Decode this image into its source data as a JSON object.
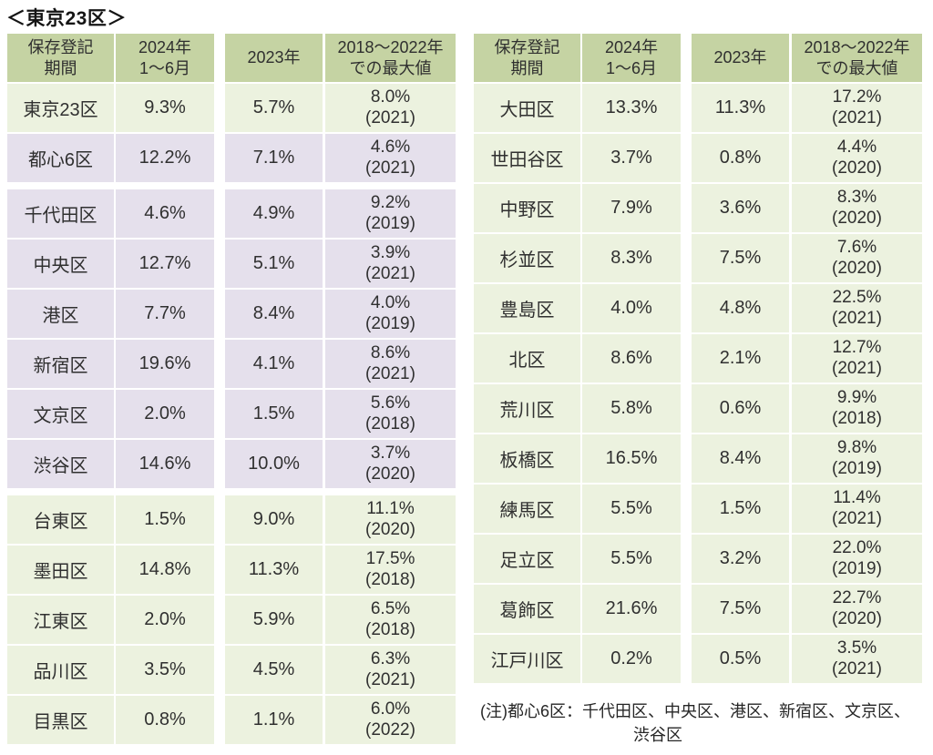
{
  "title": "＜東京23区＞",
  "colors": {
    "header_bg": "#c5d3a3",
    "green_row_bg": "#ecf2df",
    "purple_row_bg": "#e5e0ec",
    "text": "#303030"
  },
  "tables": [
    {
      "headers": [
        "保存登記\n期間",
        "2024年\n1〜6月",
        "2023年",
        "2018〜2022年\nでの最大値"
      ],
      "rows": [
        {
          "name": "東京23区",
          "v2024": "9.3%",
          "v2023": "5.7%",
          "max": "8.0%",
          "max_year": "(2021)",
          "color": "green",
          "gap_before": false
        },
        {
          "name": "都心6区",
          "v2024": "12.2%",
          "v2023": "7.1%",
          "max": "4.6%",
          "max_year": "(2021)",
          "color": "purple",
          "gap_before": false
        },
        {
          "name": "千代田区",
          "v2024": "4.6%",
          "v2023": "4.9%",
          "max": "9.2%",
          "max_year": "(2019)",
          "color": "purple",
          "gap_before": true
        },
        {
          "name": "中央区",
          "v2024": "12.7%",
          "v2023": "5.1%",
          "max": "3.9%",
          "max_year": "(2021)",
          "color": "purple",
          "gap_before": false
        },
        {
          "name": "港区",
          "v2024": "7.7%",
          "v2023": "8.4%",
          "max": "4.0%",
          "max_year": "(2019)",
          "color": "purple",
          "gap_before": false
        },
        {
          "name": "新宿区",
          "v2024": "19.6%",
          "v2023": "4.1%",
          "max": "8.6%",
          "max_year": "(2021)",
          "color": "purple",
          "gap_before": false
        },
        {
          "name": "文京区",
          "v2024": "2.0%",
          "v2023": "1.5%",
          "max": "5.6%",
          "max_year": "(2018)",
          "color": "purple",
          "gap_before": false
        },
        {
          "name": "渋谷区",
          "v2024": "14.6%",
          "v2023": "10.0%",
          "max": "3.7%",
          "max_year": "(2020)",
          "color": "purple",
          "gap_before": false
        },
        {
          "name": "台東区",
          "v2024": "1.5%",
          "v2023": "9.0%",
          "max": "11.1%",
          "max_year": "(2020)",
          "color": "green",
          "gap_before": true
        },
        {
          "name": "墨田区",
          "v2024": "14.8%",
          "v2023": "11.3%",
          "max": "17.5%",
          "max_year": "(2018)",
          "color": "green",
          "gap_before": false
        },
        {
          "name": "江東区",
          "v2024": "2.0%",
          "v2023": "5.9%",
          "max": "6.5%",
          "max_year": "(2018)",
          "color": "green",
          "gap_before": false
        },
        {
          "name": "品川区",
          "v2024": "3.5%",
          "v2023": "4.5%",
          "max": "6.3%",
          "max_year": "(2021)",
          "color": "green",
          "gap_before": false
        },
        {
          "name": "目黒区",
          "v2024": "0.8%",
          "v2023": "1.1%",
          "max": "6.0%",
          "max_year": "(2022)",
          "color": "green",
          "gap_before": false
        }
      ]
    },
    {
      "headers": [
        "保存登記\n期間",
        "2024年\n1〜6月",
        "2023年",
        "2018〜2022年\nでの最大値"
      ],
      "rows": [
        {
          "name": "大田区",
          "v2024": "13.3%",
          "v2023": "11.3%",
          "max": "17.2%",
          "max_year": "(2021)",
          "color": "green",
          "gap_before": false
        },
        {
          "name": "世田谷区",
          "v2024": "3.7%",
          "v2023": "0.8%",
          "max": "4.4%",
          "max_year": "(2020)",
          "color": "green",
          "gap_before": false
        },
        {
          "name": "中野区",
          "v2024": "7.9%",
          "v2023": "3.6%",
          "max": "8.3%",
          "max_year": "(2020)",
          "color": "green",
          "gap_before": false
        },
        {
          "name": "杉並区",
          "v2024": "8.3%",
          "v2023": "7.5%",
          "max": "7.6%",
          "max_year": "(2020)",
          "color": "green",
          "gap_before": false
        },
        {
          "name": "豊島区",
          "v2024": "4.0%",
          "v2023": "4.8%",
          "max": "22.5%",
          "max_year": "(2021)",
          "color": "green",
          "gap_before": false
        },
        {
          "name": "北区",
          "v2024": "8.6%",
          "v2023": "2.1%",
          "max": "12.7%",
          "max_year": "(2021)",
          "color": "green",
          "gap_before": false
        },
        {
          "name": "荒川区",
          "v2024": "5.8%",
          "v2023": "0.6%",
          "max": "9.9%",
          "max_year": "(2018)",
          "color": "green",
          "gap_before": false
        },
        {
          "name": "板橋区",
          "v2024": "16.5%",
          "v2023": "8.4%",
          "max": "9.8%",
          "max_year": "(2019)",
          "color": "green",
          "gap_before": false
        },
        {
          "name": "練馬区",
          "v2024": "5.5%",
          "v2023": "1.5%",
          "max": "11.4%",
          "max_year": "(2021)",
          "color": "green",
          "gap_before": false
        },
        {
          "name": "足立区",
          "v2024": "5.5%",
          "v2023": "3.2%",
          "max": "22.0%",
          "max_year": "(2019)",
          "color": "green",
          "gap_before": false
        },
        {
          "name": "葛飾区",
          "v2024": "21.6%",
          "v2023": "7.5%",
          "max": "22.7%",
          "max_year": "(2020)",
          "color": "green",
          "gap_before": false
        },
        {
          "name": "江戸川区",
          "v2024": "0.2%",
          "v2023": "0.5%",
          "max": "3.5%",
          "max_year": "(2021)",
          "color": "green",
          "gap_before": false
        }
      ]
    }
  ],
  "note": {
    "line1": "(注)都心6区：千代田区、中央区、港区、新宿区、文京区、",
    "line2": "渋谷区"
  },
  "chart_data": {
    "type": "table",
    "title": "＜東京23区＞",
    "columns": [
      "保存登記期間",
      "2024年1〜6月",
      "2023年",
      "2018〜2022年での最大値"
    ],
    "rows": [
      [
        "東京23区",
        "9.3%",
        "5.7%",
        "8.0% (2021)"
      ],
      [
        "都心6区",
        "12.2%",
        "7.1%",
        "4.6% (2021)"
      ],
      [
        "千代田区",
        "4.6%",
        "4.9%",
        "9.2% (2019)"
      ],
      [
        "中央区",
        "12.7%",
        "5.1%",
        "3.9% (2021)"
      ],
      [
        "港区",
        "7.7%",
        "8.4%",
        "4.0% (2019)"
      ],
      [
        "新宿区",
        "19.6%",
        "4.1%",
        "8.6% (2021)"
      ],
      [
        "文京区",
        "2.0%",
        "1.5%",
        "5.6% (2018)"
      ],
      [
        "渋谷区",
        "14.6%",
        "10.0%",
        "3.7% (2020)"
      ],
      [
        "台東区",
        "1.5%",
        "9.0%",
        "11.1% (2020)"
      ],
      [
        "墨田区",
        "14.8%",
        "11.3%",
        "17.5% (2018)"
      ],
      [
        "江東区",
        "2.0%",
        "5.9%",
        "6.5% (2018)"
      ],
      [
        "品川区",
        "3.5%",
        "4.5%",
        "6.3% (2021)"
      ],
      [
        "目黒区",
        "0.8%",
        "1.1%",
        "6.0% (2022)"
      ],
      [
        "大田区",
        "13.3%",
        "11.3%",
        "17.2% (2021)"
      ],
      [
        "世田谷区",
        "3.7%",
        "0.8%",
        "4.4% (2020)"
      ],
      [
        "中野区",
        "7.9%",
        "3.6%",
        "8.3% (2020)"
      ],
      [
        "杉並区",
        "8.3%",
        "7.5%",
        "7.6% (2020)"
      ],
      [
        "豊島区",
        "4.0%",
        "4.8%",
        "22.5% (2021)"
      ],
      [
        "北区",
        "8.6%",
        "2.1%",
        "12.7% (2021)"
      ],
      [
        "荒川区",
        "5.8%",
        "0.6%",
        "9.9% (2018)"
      ],
      [
        "板橋区",
        "16.5%",
        "8.4%",
        "9.8% (2019)"
      ],
      [
        "練馬区",
        "5.5%",
        "1.5%",
        "11.4% (2021)"
      ],
      [
        "足立区",
        "5.5%",
        "3.2%",
        "22.0% (2019)"
      ],
      [
        "葛飾区",
        "21.6%",
        "7.5%",
        "22.7% (2020)"
      ],
      [
        "江戸川区",
        "0.2%",
        "0.5%",
        "3.5% (2021)"
      ]
    ],
    "note": "(注)都心6区：千代田区、中央区、港区、新宿区、文京区、渋谷区"
  }
}
